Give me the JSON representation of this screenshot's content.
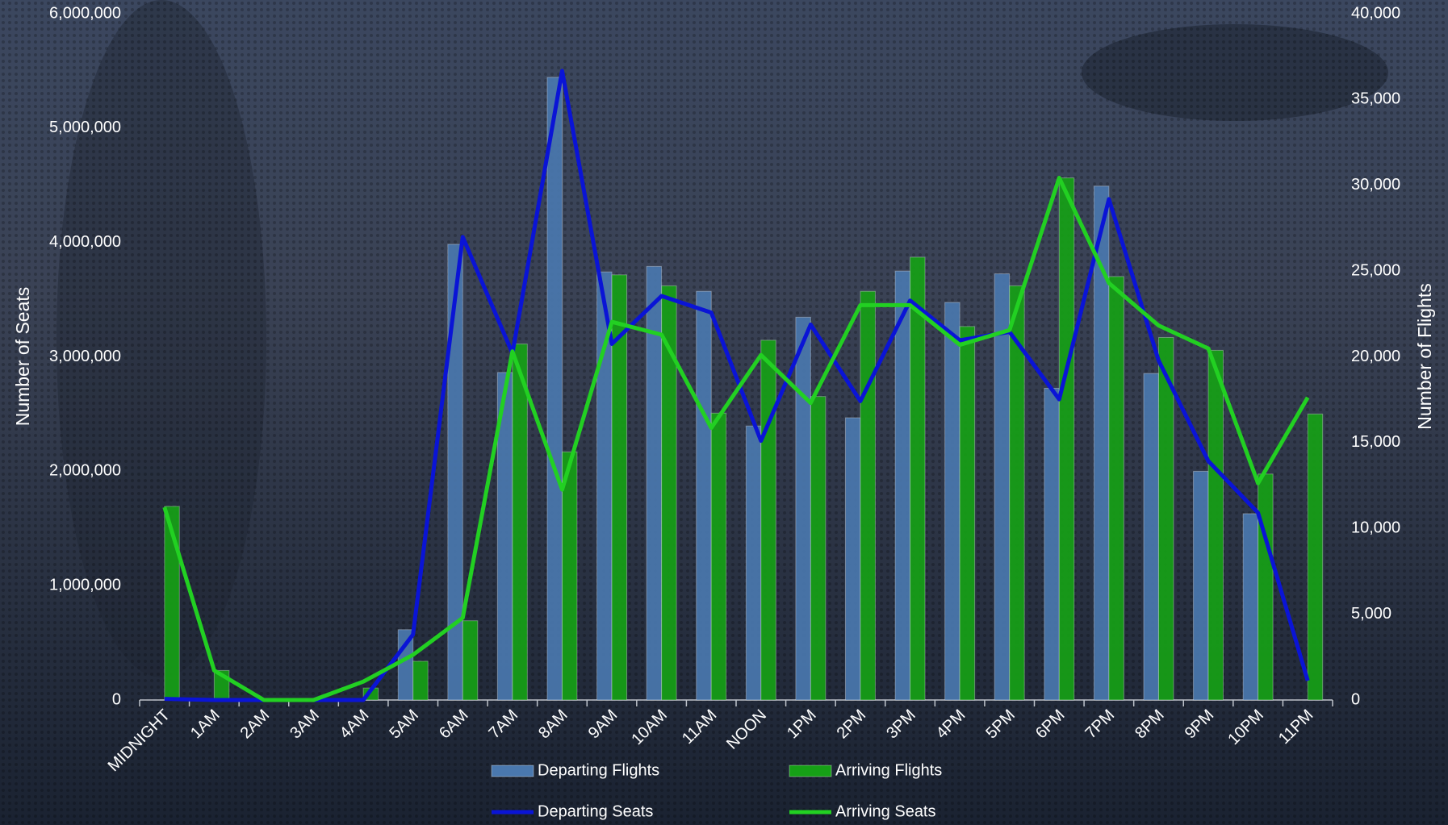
{
  "chart_data": {
    "type": "bar",
    "categories": [
      "MIDNIGHT",
      "1AM",
      "2AM",
      "3AM",
      "4AM",
      "5AM",
      "6AM",
      "7AM",
      "8AM",
      "9AM",
      "10AM",
      "11AM",
      "NOON",
      "1PM",
      "2PM",
      "3PM",
      "4PM",
      "5PM",
      "6PM",
      "7PM",
      "8PM",
      "9PM",
      "10PM",
      "11PM"
    ],
    "ylabel": "Number of Seats",
    "y2label": "Number of Flights",
    "ylim": [
      0,
      6000000
    ],
    "yticks": [
      0,
      {
        "value": 1000000,
        "label": "1,000,000"
      },
      {
        "value": 2000000,
        "label": "2,000,000"
      },
      {
        "value": 3000000,
        "label": "3,000,000"
      },
      {
        "value": 4000000,
        "label": "4,000,000"
      },
      {
        "value": 5000000,
        "label": "5,000,000"
      },
      {
        "value": 6000000,
        "label": "6,000,000"
      }
    ],
    "y2lim": [
      0,
      40000
    ],
    "y2ticks": [
      0,
      {
        "value": 5000,
        "label": "5,000"
      },
      {
        "value": 10000,
        "label": "10,000"
      },
      {
        "value": 15000,
        "label": "15,000"
      },
      {
        "value": 20000,
        "label": "20,000"
      },
      {
        "value": 25000,
        "label": "25,000"
      },
      {
        "value": 30000,
        "label": "30,000"
      },
      {
        "value": 35000,
        "label": "35,000"
      },
      {
        "value": 40000,
        "label": "40,000"
      }
    ],
    "grid": false,
    "series": [
      {
        "name": "Departing Flights",
        "type": "bar",
        "axis": "y2",
        "color": "#4a78ae",
        "values": [
          0,
          0,
          0,
          0,
          0,
          4100,
          26560,
          19090,
          36290,
          24950,
          25270,
          23820,
          15970,
          22310,
          16450,
          25000,
          23170,
          24840,
          18170,
          29950,
          19030,
          13330,
          10860,
          0
        ]
      },
      {
        "name": "Arriving Flights",
        "type": "bar",
        "axis": "y2",
        "color": "#16a016",
        "values": [
          11290,
          1720,
          0,
          0,
          700,
          2260,
          4620,
          20750,
          14460,
          24780,
          24140,
          16720,
          20970,
          17690,
          23820,
          25810,
          21770,
          24140,
          30430,
          24680,
          21130,
          20380,
          13170,
          16670
        ]
      },
      {
        "name": "Departing Seats",
        "type": "line",
        "color": "#0a14d6",
        "values": [
          10000,
          0,
          0,
          0,
          0,
          572000,
          4048000,
          3032000,
          5500000,
          3113000,
          3532000,
          3387000,
          2266000,
          3282000,
          2613000,
          3492000,
          3145000,
          3218000,
          2629000,
          4379000,
          2968000,
          2089000,
          1637000,
          169000
        ]
      },
      {
        "name": "Arriving Seats",
        "type": "line",
        "color": "#22d022",
        "values": [
          1685000,
          258000,
          0,
          0,
          161000,
          395000,
          718000,
          3048000,
          1839000,
          3306000,
          3194000,
          2379000,
          3016000,
          2597000,
          3452000,
          3452000,
          3105000,
          3234000,
          4565000,
          3645000,
          3274000,
          3073000,
          1895000,
          2645000
        ]
      }
    ]
  }
}
